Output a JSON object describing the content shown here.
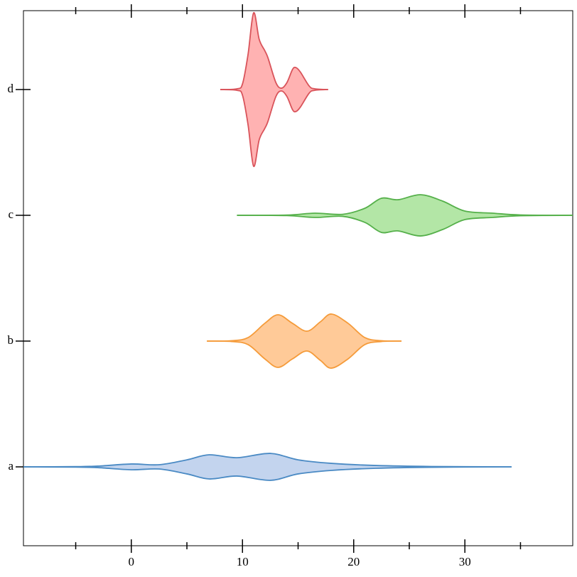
{
  "chart_data": {
    "type": "violin",
    "orientation": "horizontal",
    "categories": [
      "a",
      "b",
      "c",
      "d"
    ],
    "xlim": [
      -9.7,
      39.7
    ],
    "xticks": [
      0,
      10,
      20,
      30
    ],
    "xminorticks": [
      -5,
      5,
      15,
      25,
      35
    ],
    "series": [
      {
        "color": "#4a8ac4",
        "fill": "#c3d4ee",
        "x": [
          -9.7,
          -5,
          -3,
          0,
          2.5,
          5,
          7,
          9.5,
          12.5,
          15,
          18,
          22,
          27,
          34.2
        ],
        "values": [
          0,
          0.002,
          0.006,
          0.023,
          0.017,
          0.056,
          0.096,
          0.073,
          0.107,
          0.056,
          0.028,
          0.011,
          0.003,
          0
        ]
      },
      {
        "color": "#f59b3a",
        "fill": "#ffca98",
        "x": [
          6.8,
          9,
          10.5,
          12,
          13.2,
          14.5,
          15.8,
          17,
          18,
          19.5,
          21,
          22.5,
          24.3
        ],
        "values": [
          0,
          0.003,
          0.028,
          0.141,
          0.209,
          0.141,
          0.079,
          0.153,
          0.215,
          0.141,
          0.028,
          0.003,
          0
        ]
      },
      {
        "color": "#55b04a",
        "fill": "#b3e6a6",
        "x": [
          9.5,
          14,
          16.5,
          19,
          21,
          22.5,
          24,
          26,
          28,
          30,
          32.5,
          35,
          39.7
        ],
        "values": [
          0,
          0.002,
          0.017,
          0.008,
          0.056,
          0.136,
          0.124,
          0.164,
          0.113,
          0.034,
          0.017,
          0.003,
          0
        ]
      },
      {
        "color": "#d9535a",
        "fill": "#ffb2b2",
        "x": [
          8,
          9.5,
          10,
          10.5,
          11,
          11.5,
          12,
          12.3,
          13,
          13.5,
          14,
          14.5,
          14.8,
          15.2,
          16,
          16.5,
          17.7
        ],
        "values": [
          0,
          0.006,
          0.045,
          0.28,
          0.61,
          0.4,
          0.31,
          0.25,
          0.056,
          0.011,
          0.056,
          0.16,
          0.175,
          0.14,
          0.028,
          0.006,
          0
        ]
      }
    ]
  }
}
